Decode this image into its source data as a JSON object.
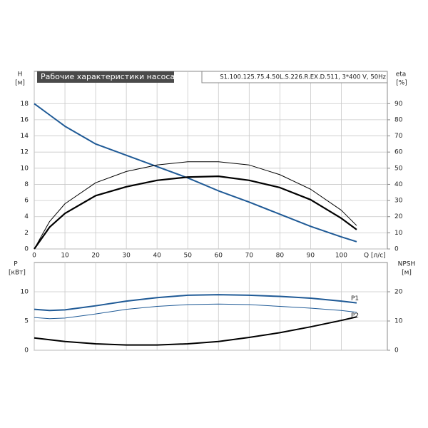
{
  "chart_data": [
    {
      "type": "line",
      "title": "Рабочие характеристики насоса",
      "subtitle": "S1.100.125.75.4.50L.S.226.R.EX.D.511, 3*400 V, 50Hz",
      "ylabel": "H",
      "yunit": "[м]",
      "y2label": "eta",
      "y2unit": "[%]",
      "xlabel": "Q [л/с]",
      "x": [
        0,
        5,
        10,
        20,
        30,
        40,
        50,
        60,
        70,
        80,
        90,
        100,
        105
      ],
      "xlim": [
        0,
        115
      ],
      "xticks": [
        0,
        10,
        20,
        30,
        40,
        50,
        60,
        70,
        80,
        90,
        100
      ],
      "ylim": [
        0,
        22
      ],
      "yticks": [
        0,
        2,
        4,
        6,
        8,
        10,
        12,
        14,
        16,
        18
      ],
      "y2lim": [
        0,
        110
      ],
      "y2ticks": [
        0,
        10,
        20,
        30,
        40,
        50,
        60,
        70,
        80,
        90
      ],
      "grid": true,
      "series": [
        {
          "color": "#1f5a96",
          "width": 2,
          "values": [
            18,
            16.6,
            15.2,
            13,
            11.6,
            10.2,
            8.8,
            7.2,
            5.8,
            4.3,
            2.8,
            1.5,
            0.9
          ]
        },
        {
          "color": "#000000",
          "width": 1,
          "axis": "y2",
          "values": [
            0,
            17,
            28,
            41,
            48,
            52,
            54,
            54,
            52,
            46,
            37,
            24,
            14.5
          ]
        },
        {
          "color": "#000000",
          "width": 2.2,
          "axis": "y2",
          "values": [
            0,
            13.5,
            22,
            33,
            38.5,
            42.5,
            44.5,
            45,
            42.5,
            38,
            30.5,
            19,
            12
          ]
        }
      ]
    },
    {
      "type": "line",
      "ylabel": "P",
      "yunit": "[кВт]",
      "y2label": "NPSH",
      "y2unit": "[м]",
      "x": [
        0,
        5,
        10,
        20,
        30,
        40,
        50,
        60,
        70,
        80,
        90,
        100,
        105
      ],
      "xlim": [
        0,
        115
      ],
      "xticks": [
        0,
        10,
        20,
        30,
        40,
        50,
        60,
        70,
        80,
        90,
        100
      ],
      "ylim": [
        0,
        15
      ],
      "yticks": [
        0,
        5,
        10
      ],
      "y2lim": [
        0,
        30
      ],
      "y2ticks": [
        0,
        10,
        20
      ],
      "grid": true,
      "series": [
        {
          "name": "P1",
          "color": "#1f5a96",
          "width": 2,
          "values": [
            7,
            6.8,
            6.9,
            7.6,
            8.4,
            9,
            9.4,
            9.5,
            9.4,
            9.2,
            8.9,
            8.4,
            8.1
          ]
        },
        {
          "name": "P2",
          "color": "#1f5a96",
          "width": 1,
          "values": [
            5.6,
            5.4,
            5.5,
            6.2,
            7,
            7.5,
            7.8,
            7.9,
            7.8,
            7.5,
            7.2,
            6.8,
            6.5
          ]
        },
        {
          "color": "#000000",
          "width": 2,
          "axis": "y2",
          "values": [
            4.2,
            3.6,
            3,
            2.2,
            1.8,
            1.8,
            2.2,
            3,
            4.4,
            6,
            8,
            10.2,
            11.4
          ]
        }
      ]
    }
  ]
}
